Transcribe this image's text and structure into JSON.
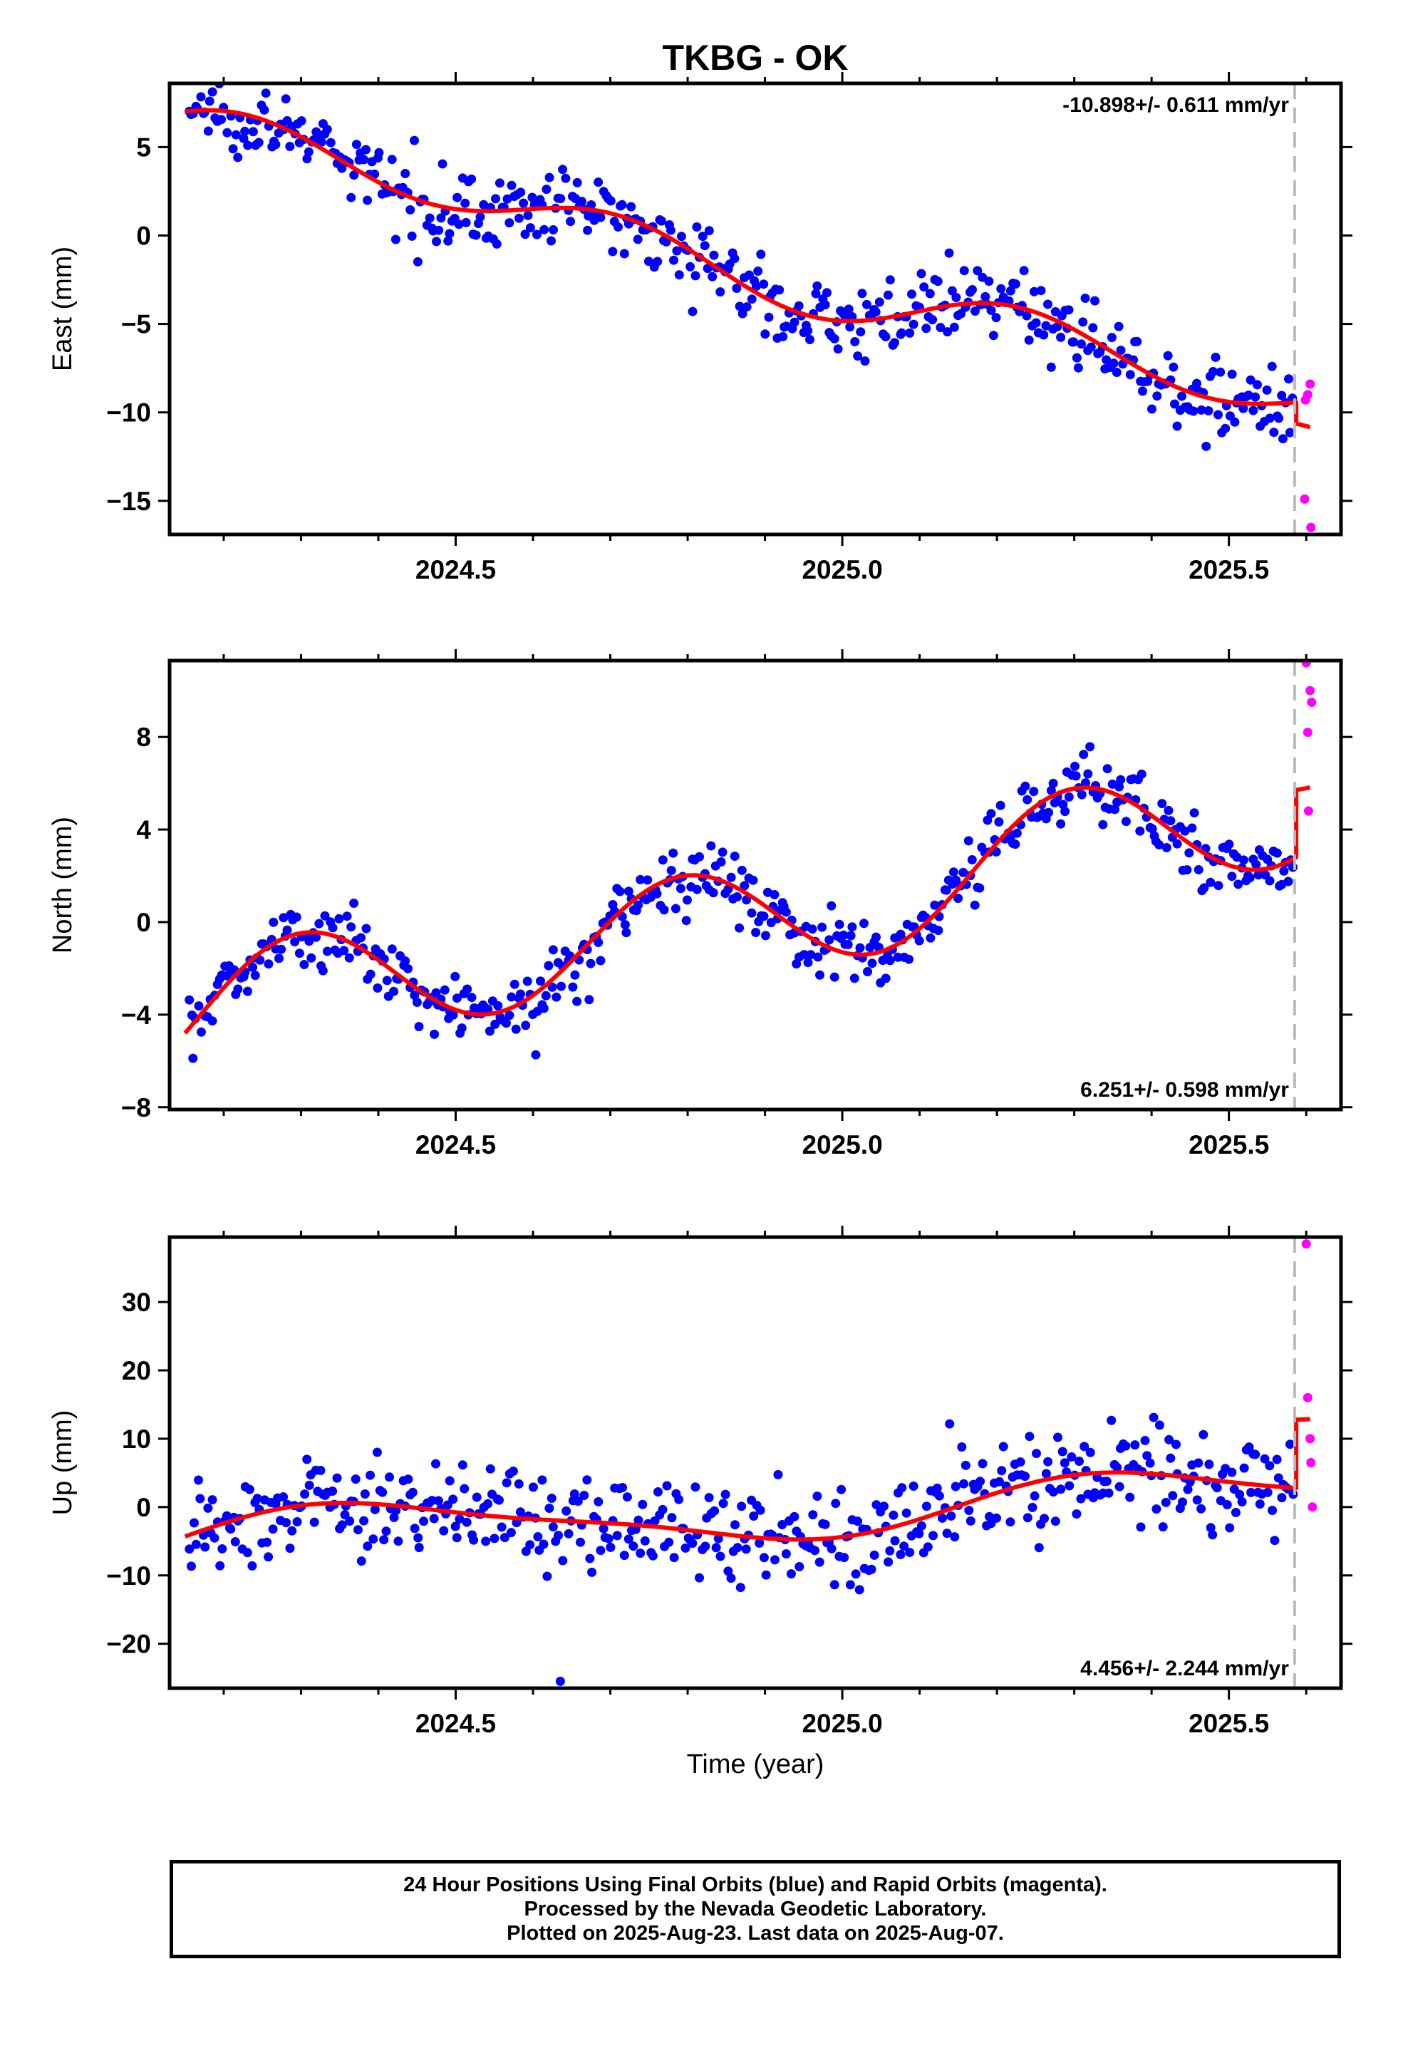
{
  "title": "TKBG - OK",
  "xlabel": "Time (year)",
  "footer": {
    "line1": "24 Hour Positions Using Final Orbits (blue) and Rapid Orbits (magenta).",
    "line2": "Processed by the Nevada Geodetic Laboratory.",
    "line3": "Plotted on 2025-Aug-23. Last data on 2025-Aug-07."
  },
  "colors": {
    "final": "#0000ff",
    "rapid": "#ff00ff",
    "model": "#ff0000",
    "marker": "#bbbbbb"
  },
  "chart_data": [
    {
      "type": "scatter",
      "id": "east",
      "ylabel": "East (mm)",
      "rate": "-10.898+/- 0.611 mm/yr",
      "rate_position": "top-right",
      "xlim": [
        2024.13,
        2025.645
      ],
      "ylim": [
        -16.9,
        8.6
      ],
      "xticks": [
        2024.5,
        2025.0,
        2025.5
      ],
      "xtick_labels": [
        "2024.5",
        "2025.0",
        "2025.5"
      ],
      "yticks": [
        5,
        0,
        -5,
        -10,
        -15
      ],
      "ytick_labels": [
        "5",
        "0",
        "−5",
        "−10",
        "−15"
      ],
      "marker_x": 2025.585,
      "trend": {
        "anchor_year": 2024.15,
        "anchor_val": 7.0,
        "rate": -10.898,
        "seasonal": [
          [
            0.54,
            0.0
          ],
          [
            1.0,
            0.9
          ]
        ],
        "step_year": 2025.587,
        "step": -1.2,
        "end_year": 2025.605
      },
      "noise": 1.0,
      "final_range": [
        2024.155,
        2025.583
      ],
      "rapid_points": [
        [
          2025.599,
          -9.3
        ],
        [
          2025.602,
          -9.0
        ],
        [
          2025.605,
          -8.4
        ],
        [
          2025.598,
          -14.9
        ],
        [
          2025.606,
          -16.5
        ]
      ]
    },
    {
      "type": "scatter",
      "id": "north",
      "ylabel": "North (mm)",
      "rate": "6.251+/- 0.598 mm/yr",
      "rate_position": "bottom-right",
      "xlim": [
        2024.13,
        2025.645
      ],
      "ylim": [
        -8.1,
        11.3
      ],
      "xticks": [
        2024.5,
        2025.0,
        2025.5
      ],
      "xtick_labels": [
        "2024.5",
        "2025.0",
        "2025.5"
      ],
      "yticks": [
        8,
        4,
        0,
        -4,
        -8
      ],
      "ytick_labels": [
        "8",
        "4",
        "0",
        "−4",
        "−8"
      ],
      "marker_x": 2025.585,
      "trend": {
        "anchor_year": 2024.15,
        "anchor_val": -4.8,
        "rate": 6.251,
        "seasonal": [
          [
            0.39,
            0.0
          ],
          [
            2.4,
            -0.6
          ]
        ],
        "step_year": 2025.587,
        "step": 2.9,
        "end_year": 2025.605
      },
      "noise": 0.75,
      "final_range": [
        2024.155,
        2025.583
      ],
      "rapid_points": [
        [
          2025.6,
          11.2
        ],
        [
          2025.605,
          10.0
        ],
        [
          2025.607,
          9.5
        ],
        [
          2025.602,
          8.2
        ],
        [
          2025.603,
          4.8
        ]
      ]
    },
    {
      "type": "scatter",
      "id": "up",
      "ylabel": "Up (mm)",
      "rate": "4.456+/- 2.244 mm/yr",
      "rate_position": "bottom-right",
      "xlim": [
        2024.13,
        2025.645
      ],
      "ylim": [
        -26.5,
        39.5
      ],
      "xticks": [
        2024.5,
        2025.0,
        2025.5
      ],
      "xtick_labels": [
        "2024.5",
        "2025.0",
        "2025.5"
      ],
      "yticks": [
        30,
        20,
        10,
        0,
        -10,
        -20
      ],
      "ytick_labels": [
        "30",
        "20",
        "10",
        "0",
        "−10",
        "−20"
      ],
      "marker_x": 2025.585,
      "trend": {
        "anchor_year": 2024.15,
        "anchor_val": -4.3,
        "rate": 4.456,
        "seasonal": [
          [
            3.6,
            0.0
          ],
          [
            1.0,
            0.0
          ]
        ],
        "step_year": 2025.587,
        "step": 10.0,
        "end_year": 2025.605
      },
      "noise": 3.6,
      "final_range": [
        2024.155,
        2025.583
      ],
      "rapid_points": [
        [
          2025.6,
          38.5
        ],
        [
          2025.602,
          16.0
        ],
        [
          2025.605,
          10.0
        ],
        [
          2025.606,
          6.5
        ],
        [
          2025.608,
          0.0
        ]
      ]
    }
  ]
}
